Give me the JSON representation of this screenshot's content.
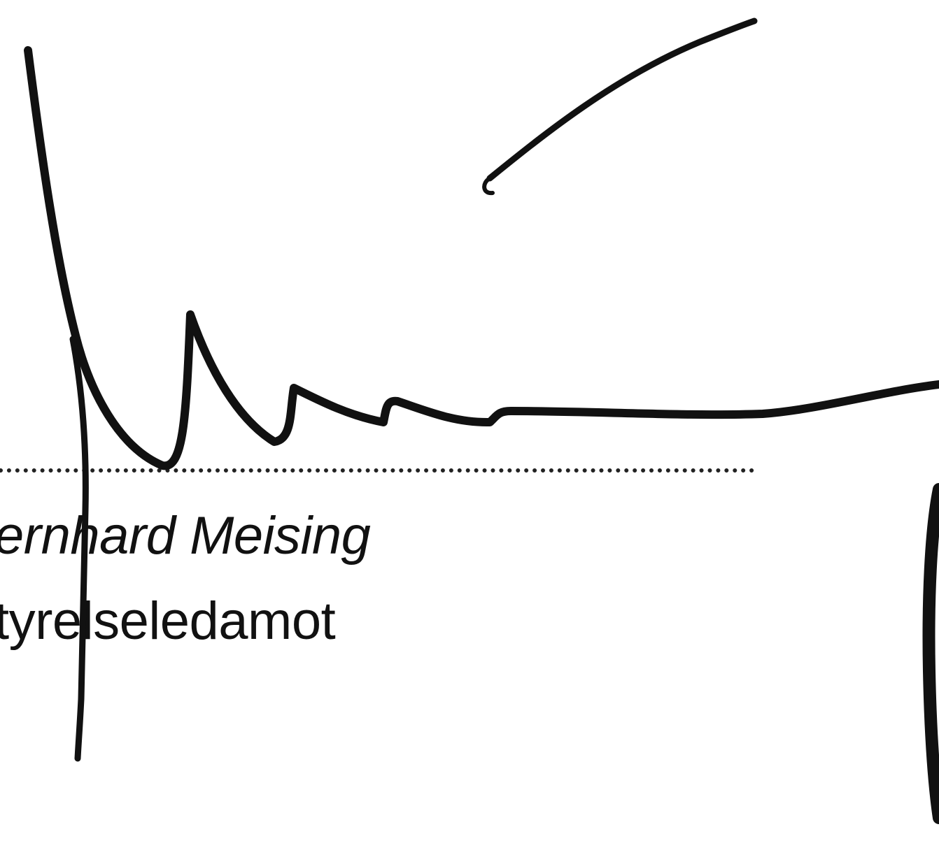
{
  "signature_block": {
    "name": "ernhard Meising",
    "title": "tyrelseledamot"
  },
  "ink_color": "#111111"
}
